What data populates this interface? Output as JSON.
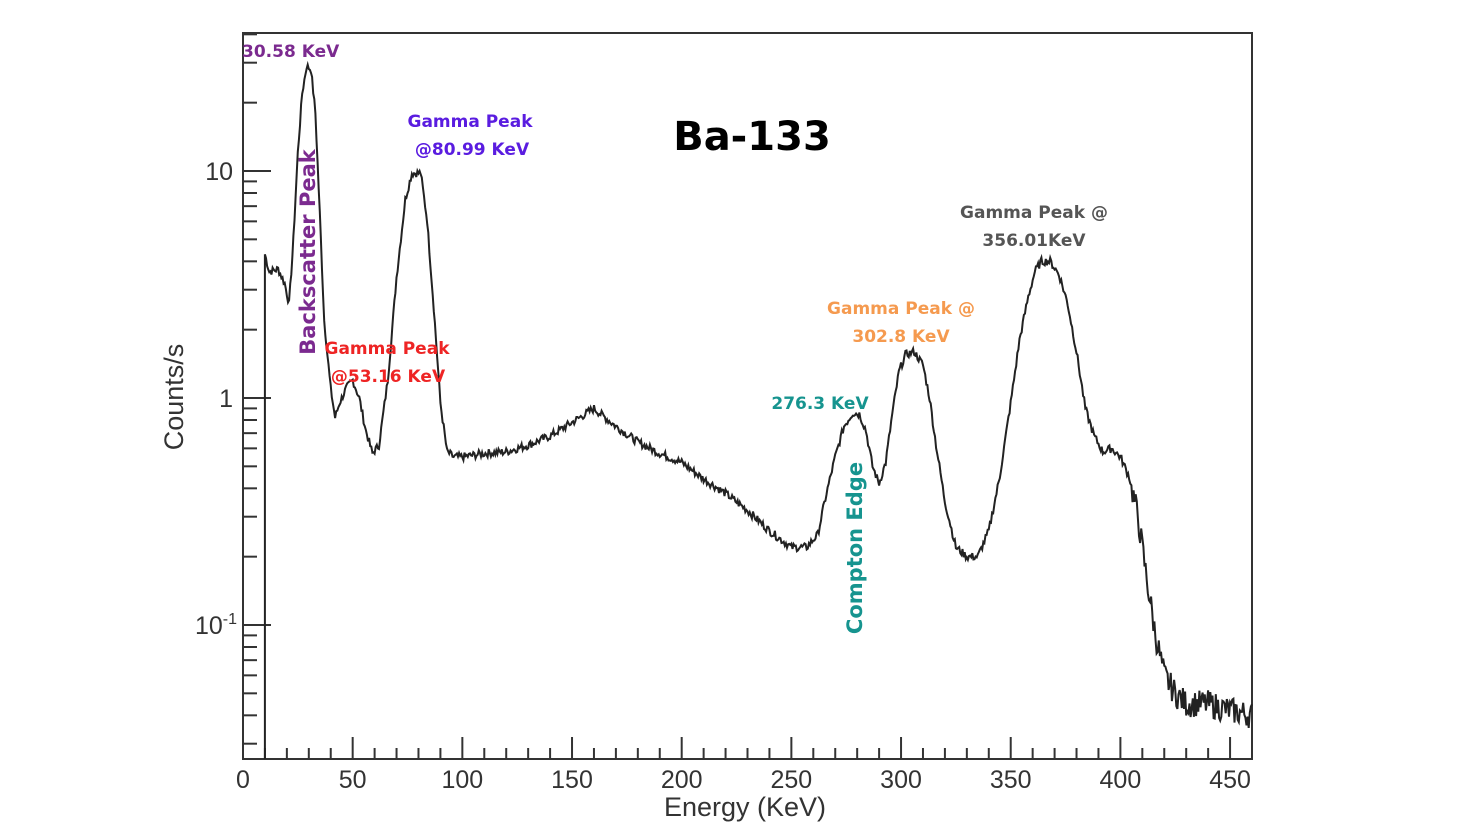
{
  "chart_data": {
    "type": "line",
    "title": "Ba-133",
    "xlabel": "Energy (KeV)",
    "ylabel": "Counts/s",
    "xlim": [
      0,
      460
    ],
    "ylim": [
      0.03,
      40
    ],
    "yscale": "log",
    "grid": false,
    "x_ticks": [
      "0",
      "50",
      "100",
      "150",
      "200",
      "250",
      "300",
      "350",
      "400",
      "450"
    ],
    "y_ticks": [
      {
        "value": 0.1,
        "base": "10",
        "exp": "-1"
      },
      {
        "value": 1,
        "base": "1",
        "exp": ""
      },
      {
        "value": 10,
        "base": "10",
        "exp": ""
      }
    ],
    "series": [
      {
        "x": [
          10,
          12,
          16,
          19,
          21,
          23,
          25,
          27,
          29,
          31,
          33,
          35,
          37,
          40,
          42,
          44,
          47,
          50,
          53,
          56,
          59,
          62,
          66,
          70,
          74,
          77,
          81,
          84,
          87,
          90,
          93,
          96,
          100,
          110,
          120,
          130,
          140,
          150,
          160,
          170,
          180,
          190,
          200,
          210,
          220,
          230,
          240,
          250,
          257,
          262,
          266,
          270,
          274,
          278,
          281,
          284,
          287,
          290,
          293,
          296,
          299,
          302,
          306,
          310,
          313,
          316,
          320,
          325,
          330,
          335,
          340,
          345,
          350,
          354,
          358,
          361,
          364,
          368,
          372,
          376,
          380,
          384,
          388,
          392,
          396,
          400,
          404,
          408,
          412,
          416,
          420,
          425,
          430,
          440,
          450,
          460
        ],
        "y": [
          4.3,
          3.6,
          3.7,
          3.2,
          2.6,
          5.0,
          12.0,
          22.0,
          29.0,
          28.0,
          18.0,
          6.5,
          2.2,
          1.1,
          0.82,
          0.95,
          1.1,
          1.2,
          1.0,
          0.72,
          0.57,
          0.62,
          1.2,
          3.4,
          7.5,
          9.8,
          9.8,
          6.0,
          2.5,
          0.95,
          0.58,
          0.55,
          0.55,
          0.57,
          0.58,
          0.62,
          0.68,
          0.78,
          0.9,
          0.75,
          0.64,
          0.57,
          0.52,
          0.44,
          0.38,
          0.32,
          0.26,
          0.22,
          0.22,
          0.25,
          0.38,
          0.55,
          0.75,
          0.86,
          0.85,
          0.72,
          0.5,
          0.42,
          0.52,
          0.85,
          1.3,
          1.55,
          1.6,
          1.4,
          1.0,
          0.62,
          0.35,
          0.22,
          0.2,
          0.2,
          0.26,
          0.45,
          0.95,
          1.8,
          2.8,
          3.6,
          4.0,
          4.0,
          3.5,
          2.6,
          1.6,
          0.9,
          0.68,
          0.58,
          0.6,
          0.55,
          0.45,
          0.3,
          0.16,
          0.09,
          0.06,
          0.05,
          0.045,
          0.045,
          0.042,
          0.04
        ]
      }
    ],
    "annotations": [
      {
        "text": "30.58 KeV",
        "color": "#7b2a8f"
      },
      {
        "text": "Backscatter Peak",
        "color": "#7b2a8f"
      },
      {
        "text": "Gamma Peak",
        "color": "#5a1ce0"
      },
      {
        "text": "@80.99 KeV",
        "color": "#5a1ce0"
      },
      {
        "text": "Gamma Peak",
        "color": "#ee2424"
      },
      {
        "text": "@53.16 KeV",
        "color": "#ee2424"
      },
      {
        "text": "276.3 KeV",
        "color": "#16948f"
      },
      {
        "text": "Compton Edge",
        "color": "#16948f"
      },
      {
        "text": "Gamma Peak @",
        "color": "#f59a4f"
      },
      {
        "text": "302.8 KeV",
        "color": "#f59a4f"
      },
      {
        "text": "Gamma Peak @",
        "color": "#555555"
      },
      {
        "text": "356.01KeV",
        "color": "#555555"
      }
    ]
  }
}
